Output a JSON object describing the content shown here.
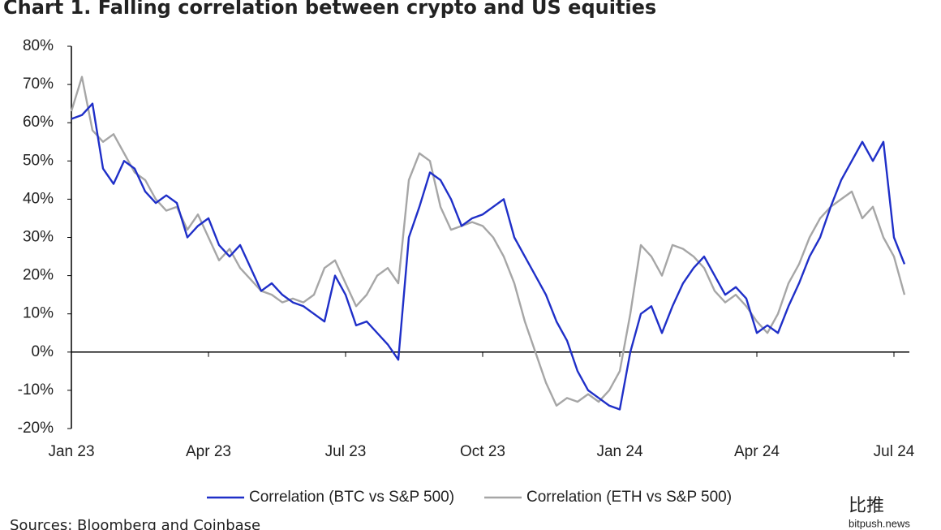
{
  "chart_data": {
    "type": "line",
    "title": "Chart 1. Falling correlation between crypto and US equities",
    "source": "Sources: Bloomberg and Coinbase",
    "watermark": {
      "logo": "比推",
      "site": "bitpush.news"
    },
    "categories": [
      "Jan 23",
      null,
      null,
      null,
      null,
      null,
      null,
      null,
      null,
      null,
      null,
      null,
      null,
      "Apr 23",
      null,
      null,
      null,
      null,
      null,
      null,
      null,
      null,
      null,
      null,
      null,
      null,
      "Jul 23",
      null,
      null,
      null,
      null,
      null,
      null,
      null,
      null,
      null,
      null,
      null,
      null,
      "Oct 23",
      null,
      null,
      null,
      null,
      null,
      null,
      null,
      null,
      null,
      null,
      null,
      null,
      "Jan 24",
      null,
      null,
      null,
      null,
      null,
      null,
      null,
      null,
      null,
      null,
      null,
      null,
      "Apr 24",
      null,
      null,
      null,
      null,
      null,
      null,
      null,
      null,
      null,
      null,
      null,
      null,
      "Jul 24",
      null
    ],
    "series": [
      {
        "name": "Correlation (BTC vs S&P 500)",
        "color": "#1f2fc8",
        "values": [
          61,
          62,
          65,
          48,
          44,
          50,
          48,
          42,
          39,
          41,
          39,
          30,
          33,
          35,
          28,
          25,
          28,
          22,
          16,
          18,
          15,
          13,
          12,
          10,
          8,
          20,
          15,
          7,
          8,
          5,
          2,
          -2,
          30,
          38,
          47,
          45,
          40,
          33,
          35,
          36,
          38,
          40,
          30,
          25,
          20,
          15,
          8,
          3,
          -5,
          -10,
          -12,
          -14,
          -15,
          0,
          10,
          12,
          5,
          12,
          18,
          22,
          25,
          20,
          15,
          17,
          14,
          5,
          7,
          5,
          12,
          18,
          25,
          30,
          38,
          45,
          50,
          55,
          50,
          55,
          30,
          23
        ]
      },
      {
        "name": "Correlation (ETH vs S&P 500)",
        "color": "#a6a6a6",
        "values": [
          63,
          72,
          58,
          55,
          57,
          52,
          47,
          45,
          40,
          37,
          38,
          32,
          36,
          30,
          24,
          27,
          22,
          19,
          16,
          15,
          13,
          14,
          13,
          15,
          22,
          24,
          18,
          12,
          15,
          20,
          22,
          18,
          45,
          52,
          50,
          38,
          32,
          33,
          34,
          33,
          30,
          25,
          18,
          8,
          0,
          -8,
          -14,
          -12,
          -13,
          -11,
          -13,
          -10,
          -5,
          10,
          28,
          25,
          20,
          28,
          27,
          25,
          22,
          16,
          13,
          15,
          12,
          8,
          5,
          10,
          18,
          23,
          30,
          35,
          38,
          40,
          42,
          35,
          38,
          30,
          25,
          15
        ]
      }
    ],
    "ylim": [
      -20,
      80
    ],
    "yticks": [
      {
        "value": -20,
        "label": "-20%"
      },
      {
        "value": -10,
        "label": "-10%"
      },
      {
        "value": 0,
        "label": "0%"
      },
      {
        "value": 10,
        "label": "10%"
      },
      {
        "value": 20,
        "label": "20%"
      },
      {
        "value": 30,
        "label": "30%"
      },
      {
        "value": 40,
        "label": "40%"
      },
      {
        "value": 50,
        "label": "50%"
      },
      {
        "value": 60,
        "label": "60%"
      },
      {
        "value": 70,
        "label": "70%"
      },
      {
        "value": 80,
        "label": "80%"
      }
    ],
    "grid": false,
    "legend": "bottom"
  }
}
